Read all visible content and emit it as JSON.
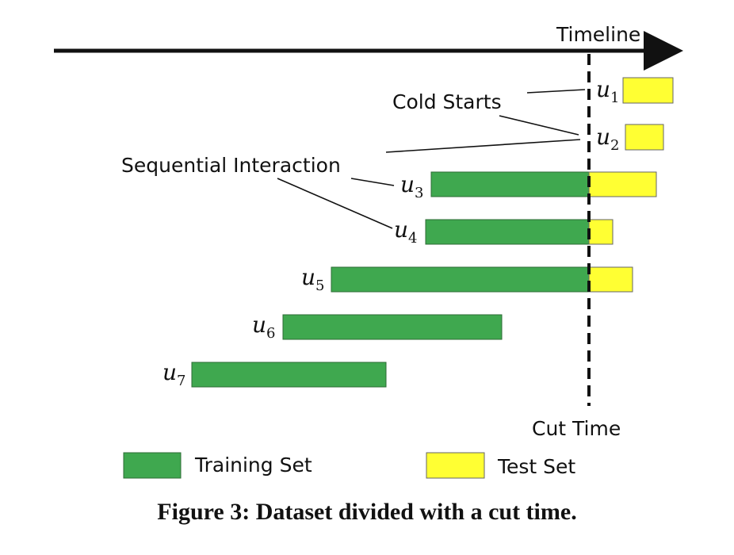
{
  "timeline_label": "Timeline",
  "cut_time_label": "Cut Time",
  "annotations": {
    "cold_starts": "Cold Starts",
    "sequential_interaction": "Sequential Interaction"
  },
  "users": [
    {
      "label": "u",
      "subscript": "1"
    },
    {
      "label": "u",
      "subscript": "2"
    },
    {
      "label": "u",
      "subscript": "3"
    },
    {
      "label": "u",
      "subscript": "4"
    },
    {
      "label": "u",
      "subscript": "5"
    },
    {
      "label": "u",
      "subscript": "6"
    },
    {
      "label": "u",
      "subscript": "7"
    }
  ],
  "legend": {
    "training": "Training Set",
    "test": "Test Set"
  },
  "caption": "Figure 3: Dataset divided with a cut time."
}
